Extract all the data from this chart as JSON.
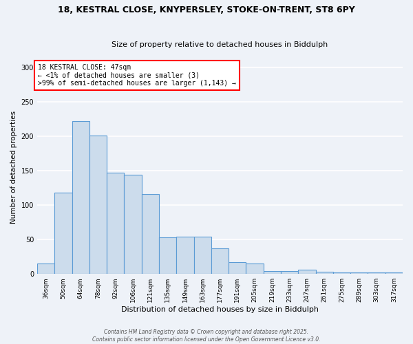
{
  "title_line1": "18, KESTRAL CLOSE, KNYPERSLEY, STOKE-ON-TRENT, ST8 6PY",
  "title_line2": "Size of property relative to detached houses in Biddulph",
  "xlabel": "Distribution of detached houses by size in Biddulph",
  "ylabel": "Number of detached properties",
  "categories": [
    "36sqm",
    "50sqm",
    "64sqm",
    "78sqm",
    "92sqm",
    "106sqm",
    "121sqm",
    "135sqm",
    "149sqm",
    "163sqm",
    "177sqm",
    "191sqm",
    "205sqm",
    "219sqm",
    "233sqm",
    "247sqm",
    "261sqm",
    "275sqm",
    "289sqm",
    "303sqm",
    "317sqm"
  ],
  "values": [
    15,
    118,
    222,
    201,
    147,
    144,
    116,
    53,
    54,
    54,
    37,
    17,
    15,
    4,
    4,
    6,
    3,
    2,
    2,
    2,
    2
  ],
  "bar_color": "#ccdcec",
  "bar_edge_color": "#5b9bd5",
  "annotation_text": "18 KESTRAL CLOSE: 47sqm\n← <1% of detached houses are smaller (3)\n>99% of semi-detached houses are larger (1,143) →",
  "annotation_box_color": "white",
  "annotation_box_edge": "red",
  "ylim": [
    0,
    310
  ],
  "yticks": [
    0,
    50,
    100,
    150,
    200,
    250,
    300
  ],
  "background_color": "#eef2f8",
  "plot_bg_color": "#eef2f8",
  "grid_color": "white",
  "footer": "Contains HM Land Registry data © Crown copyright and database right 2025.\nContains public sector information licensed under the Open Government Licence v3.0."
}
